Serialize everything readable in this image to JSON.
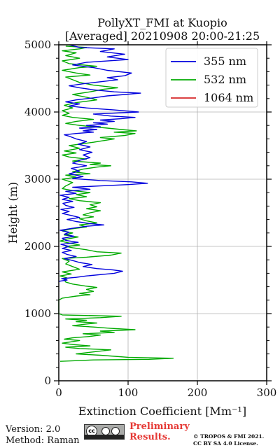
{
  "chart_data": {
    "type": "line",
    "title_line1": "PollyXT_FMI at Kuopio",
    "title_line2": "[Averaged] 20210908 20:00-21:25",
    "xlabel": "Extinction Coefficient [Mm⁻¹]",
    "ylabel": "Height (m)",
    "xlim": [
      0,
      300
    ],
    "ylim": [
      0,
      5000
    ],
    "xticks": [
      "0",
      "100",
      "200",
      "300"
    ],
    "yticks": [
      "0",
      "1000",
      "2000",
      "3000",
      "4000",
      "5000"
    ],
    "grid": true,
    "legend_position": "top-right",
    "series": [
      {
        "name": "355 nm",
        "color": "#0000dd",
        "points": [
          [
            0,
            1480
          ],
          [
            12,
            1500
          ],
          [
            4,
            1520
          ],
          [
            25,
            1540
          ],
          [
            40,
            1560
          ],
          [
            60,
            1580
          ],
          [
            80,
            1600
          ],
          [
            92,
            1630
          ],
          [
            78,
            1650
          ],
          [
            55,
            1670
          ],
          [
            35,
            1700
          ],
          [
            48,
            1730
          ],
          [
            30,
            1760
          ],
          [
            20,
            1790
          ],
          [
            8,
            1820
          ],
          [
            25,
            1850
          ],
          [
            12,
            1880
          ],
          [
            5,
            1910
          ],
          [
            18,
            1940
          ],
          [
            5,
            1970
          ],
          [
            15,
            2000
          ],
          [
            3,
            2030
          ],
          [
            28,
            2060
          ],
          [
            10,
            2090
          ],
          [
            5,
            2120
          ],
          [
            22,
            2150
          ],
          [
            8,
            2180
          ],
          [
            15,
            2210
          ],
          [
            2,
            2240
          ],
          [
            20,
            2270
          ],
          [
            40,
            2300
          ],
          [
            65,
            2320
          ],
          [
            45,
            2340
          ],
          [
            25,
            2370
          ],
          [
            12,
            2400
          ],
          [
            30,
            2430
          ],
          [
            18,
            2460
          ],
          [
            5,
            2490
          ],
          [
            15,
            2520
          ],
          [
            3,
            2550
          ],
          [
            22,
            2580
          ],
          [
            10,
            2610
          ],
          [
            6,
            2640
          ],
          [
            20,
            2670
          ],
          [
            5,
            2700
          ],
          [
            15,
            2730
          ],
          [
            2,
            2760
          ],
          [
            25,
            2790
          ],
          [
            10,
            2820
          ],
          [
            45,
            2850
          ],
          [
            20,
            2880
          ],
          [
            60,
            2900
          ],
          [
            100,
            2920
          ],
          [
            128,
            2940
          ],
          [
            105,
            2960
          ],
          [
            60,
            2980
          ],
          [
            20,
            3010
          ],
          [
            35,
            3040
          ],
          [
            15,
            3080
          ],
          [
            30,
            3120
          ],
          [
            18,
            3160
          ],
          [
            40,
            3200
          ],
          [
            20,
            3240
          ],
          [
            30,
            3280
          ],
          [
            45,
            3320
          ],
          [
            35,
            3360
          ],
          [
            48,
            3400
          ],
          [
            30,
            3440
          ],
          [
            45,
            3480
          ],
          [
            28,
            3520
          ],
          [
            40,
            3560
          ],
          [
            25,
            3600
          ],
          [
            15,
            3640
          ],
          [
            8,
            3660
          ],
          [
            25,
            3680
          ],
          [
            50,
            3700
          ],
          [
            35,
            3720
          ],
          [
            55,
            3740
          ],
          [
            30,
            3760
          ],
          [
            60,
            3780
          ],
          [
            40,
            3800
          ],
          [
            70,
            3820
          ],
          [
            50,
            3840
          ],
          [
            80,
            3860
          ],
          [
            60,
            3880
          ],
          [
            90,
            3900
          ],
          [
            110,
            3920
          ],
          [
            75,
            3940
          ],
          [
            50,
            3970
          ],
          [
            115,
            4000
          ],
          [
            80,
            4030
          ],
          [
            40,
            4060
          ],
          [
            15,
            4090
          ],
          [
            30,
            4120
          ],
          [
            10,
            4150
          ],
          [
            25,
            4180
          ],
          [
            50,
            4210
          ],
          [
            70,
            4240
          ],
          [
            95,
            4260
          ],
          [
            118,
            4280
          ],
          [
            80,
            4300
          ],
          [
            50,
            4330
          ],
          [
            30,
            4360
          ],
          [
            15,
            4390
          ],
          [
            35,
            4420
          ],
          [
            60,
            4450
          ],
          [
            85,
            4480
          ],
          [
            70,
            4510
          ],
          [
            95,
            4540
          ],
          [
            105,
            4580
          ],
          [
            70,
            4620
          ],
          [
            50,
            4660
          ],
          [
            20,
            4700
          ],
          [
            40,
            4740
          ],
          [
            100,
            4780
          ],
          [
            70,
            4820
          ],
          [
            95,
            4860
          ],
          [
            60,
            4900
          ],
          [
            80,
            4940
          ],
          [
            30,
            4960
          ],
          [
            15,
            5000
          ]
        ]
      },
      {
        "name": "532 nm",
        "color": "#00aa00",
        "points": [
          [
            2,
            290
          ],
          [
            50,
            310
          ],
          [
            130,
            320
          ],
          [
            165,
            335
          ],
          [
            100,
            350
          ],
          [
            60,
            380
          ],
          [
            25,
            400
          ],
          [
            50,
            430
          ],
          [
            75,
            460
          ],
          [
            30,
            480
          ],
          [
            10,
            500
          ],
          [
            45,
            520
          ],
          [
            20,
            540
          ],
          [
            5,
            560
          ],
          [
            18,
            580
          ],
          [
            30,
            600
          ],
          [
            8,
            620
          ],
          [
            20,
            640
          ],
          [
            45,
            660
          ],
          [
            60,
            680
          ],
          [
            35,
            700
          ],
          [
            80,
            720
          ],
          [
            60,
            740
          ],
          [
            110,
            760
          ],
          [
            75,
            780
          ],
          [
            50,
            800
          ],
          [
            20,
            820
          ],
          [
            35,
            840
          ],
          [
            55,
            860
          ],
          [
            25,
            880
          ],
          [
            40,
            900
          ],
          [
            10,
            920
          ],
          [
            60,
            940
          ],
          [
            90,
            960
          ],
          [
            5,
            980
          ],
          [
            0,
            1000
          ],
          [
            0,
            1050
          ],
          [
            0,
            1100
          ],
          [
            0,
            1200
          ],
          [
            5,
            1230
          ],
          [
            25,
            1260
          ],
          [
            45,
            1280
          ],
          [
            30,
            1300
          ],
          [
            50,
            1330
          ],
          [
            40,
            1360
          ],
          [
            55,
            1390
          ],
          [
            38,
            1410
          ],
          [
            20,
            1440
          ],
          [
            10,
            1470
          ],
          [
            8,
            1500
          ],
          [
            12,
            1530
          ],
          [
            2,
            1560
          ],
          [
            18,
            1590
          ],
          [
            5,
            1620
          ],
          [
            30,
            1660
          ],
          [
            20,
            1700
          ],
          [
            10,
            1740
          ],
          [
            15,
            1780
          ],
          [
            5,
            1820
          ],
          [
            40,
            1840
          ],
          [
            75,
            1870
          ],
          [
            90,
            1900
          ],
          [
            55,
            1920
          ],
          [
            40,
            1950
          ],
          [
            20,
            1980
          ],
          [
            10,
            2000
          ],
          [
            30,
            2020
          ],
          [
            15,
            2050
          ],
          [
            2,
            2080
          ],
          [
            12,
            2110
          ],
          [
            28,
            2140
          ],
          [
            8,
            2170
          ],
          [
            20,
            2200
          ],
          [
            5,
            2230
          ],
          [
            18,
            2260
          ],
          [
            40,
            2290
          ],
          [
            30,
            2320
          ],
          [
            55,
            2350
          ],
          [
            40,
            2380
          ],
          [
            30,
            2410
          ],
          [
            50,
            2440
          ],
          [
            35,
            2470
          ],
          [
            45,
            2500
          ],
          [
            60,
            2530
          ],
          [
            40,
            2560
          ],
          [
            55,
            2590
          ],
          [
            45,
            2620
          ],
          [
            60,
            2650
          ],
          [
            30,
            2680
          ],
          [
            15,
            2710
          ],
          [
            40,
            2740
          ],
          [
            25,
            2770
          ],
          [
            45,
            2800
          ],
          [
            20,
            2830
          ],
          [
            5,
            2860
          ],
          [
            10,
            2900
          ],
          [
            20,
            2950
          ],
          [
            5,
            3000
          ],
          [
            25,
            3030
          ],
          [
            10,
            3060
          ],
          [
            45,
            3080
          ],
          [
            20,
            3110
          ],
          [
            35,
            3150
          ],
          [
            55,
            3180
          ],
          [
            75,
            3200
          ],
          [
            45,
            3220
          ],
          [
            60,
            3240
          ],
          [
            20,
            3270
          ],
          [
            40,
            3300
          ],
          [
            15,
            3330
          ],
          [
            5,
            3360
          ],
          [
            25,
            3390
          ],
          [
            8,
            3420
          ],
          [
            30,
            3460
          ],
          [
            15,
            3500
          ],
          [
            50,
            3550
          ],
          [
            80,
            3600
          ],
          [
            60,
            3620
          ],
          [
            95,
            3650
          ],
          [
            110,
            3680
          ],
          [
            80,
            3700
          ],
          [
            112,
            3720
          ],
          [
            90,
            3740
          ],
          [
            70,
            3760
          ],
          [
            50,
            3780
          ],
          [
            30,
            3800
          ],
          [
            10,
            3830
          ],
          [
            25,
            3860
          ],
          [
            50,
            3890
          ],
          [
            20,
            3920
          ],
          [
            5,
            3950
          ],
          [
            15,
            3980
          ],
          [
            5,
            4020
          ],
          [
            20,
            4060
          ],
          [
            8,
            4100
          ],
          [
            25,
            4140
          ],
          [
            55,
            4180
          ],
          [
            40,
            4220
          ],
          [
            20,
            4260
          ],
          [
            45,
            4300
          ],
          [
            65,
            4340
          ],
          [
            85,
            4360
          ],
          [
            50,
            4400
          ],
          [
            30,
            4440
          ],
          [
            20,
            4480
          ],
          [
            10,
            4520
          ],
          [
            45,
            4550
          ],
          [
            25,
            4580
          ],
          [
            5,
            4620
          ],
          [
            30,
            4660
          ],
          [
            55,
            4680
          ],
          [
            15,
            4720
          ],
          [
            5,
            4760
          ],
          [
            30,
            4800
          ],
          [
            10,
            4840
          ],
          [
            25,
            4880
          ],
          [
            5,
            4910
          ],
          [
            30,
            4940
          ],
          [
            40,
            4960
          ],
          [
            10,
            4980
          ]
        ]
      },
      {
        "name": "1064 nm",
        "color": "#d62728",
        "points": []
      }
    ]
  },
  "footer": {
    "version": "Version: 2.0",
    "method": "Method: Raman",
    "preliminary_line1": "Preliminary",
    "preliminary_line2": "Results.",
    "copyright_line1": "© TROPOS & FMI 2021.",
    "copyright_line2": "CC BY SA 4.0 License.",
    "license_badge_text": "cc"
  }
}
